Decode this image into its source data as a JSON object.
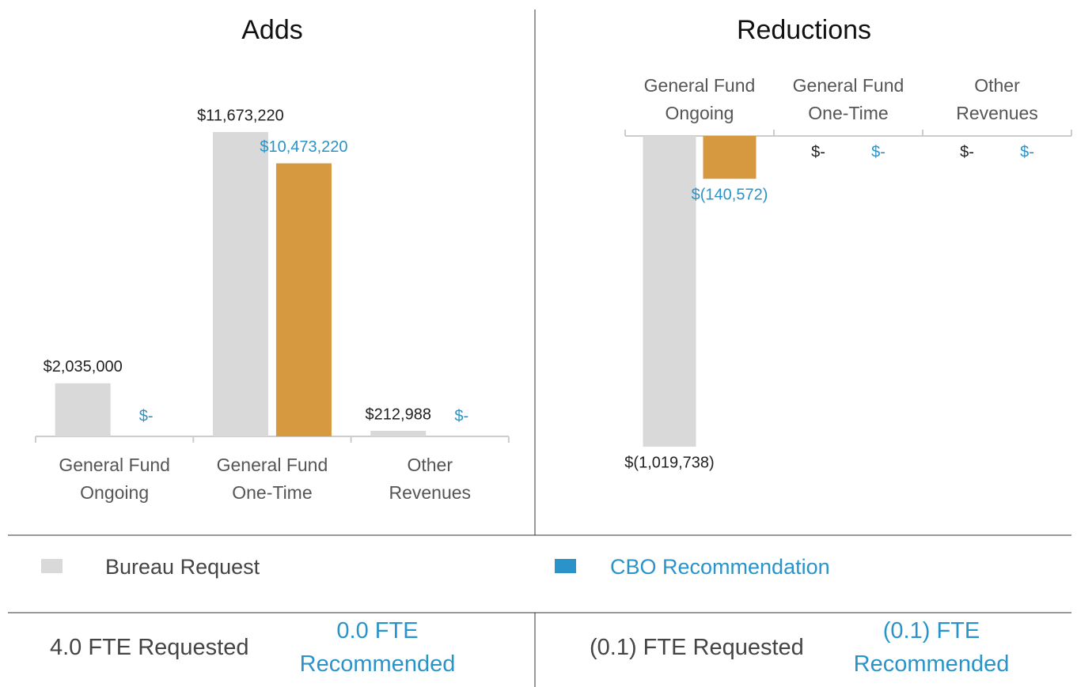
{
  "chart_data": [
    {
      "type": "bar",
      "title": "Adds",
      "categories": [
        "General Fund Ongoing",
        "General Fund One-Time",
        "Other Revenues"
      ],
      "series": [
        {
          "name": "Bureau Request",
          "color": "#d9d9d9",
          "label_color": "#222222",
          "values": [
            2035000,
            11673220,
            212988
          ],
          "value_labels": [
            "$2,035,000",
            "$11,673,220",
            "$212,988"
          ]
        },
        {
          "name": "CBO Recommendation",
          "color": "#d6993f",
          "legend_color": "#2a93c9",
          "label_color": "#2a93c9",
          "values": [
            0,
            10473220,
            0
          ],
          "value_labels": [
            "$-",
            "$10,473,220",
            "$-"
          ]
        }
      ]
    },
    {
      "type": "bar",
      "title": "Reductions",
      "categories": [
        "General Fund Ongoing",
        "General Fund One-Time",
        "Other Revenues"
      ],
      "series": [
        {
          "name": "Bureau Request",
          "color": "#d9d9d9",
          "label_color": "#222222",
          "values": [
            -1019738,
            0,
            0
          ],
          "value_labels": [
            "$(1,019,738)",
            "$-",
            "$-"
          ]
        },
        {
          "name": "CBO Recommendation",
          "color": "#d6993f",
          "legend_color": "#2a93c9",
          "label_color": "#2a93c9",
          "values": [
            -140572,
            0,
            0
          ],
          "value_labels": [
            "$(140,572)",
            "$-",
            "$-"
          ]
        }
      ]
    }
  ],
  "fte": [
    {
      "requested": "4.0 FTE Requested",
      "recommended": "0.0 FTE Recommended"
    },
    {
      "requested": "(0.1) FTE Requested",
      "recommended": "(0.1) FTE Recommended"
    }
  ]
}
